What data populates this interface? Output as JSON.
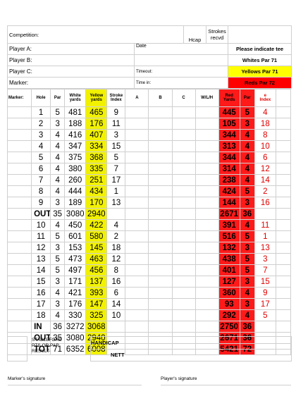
{
  "header": {
    "competition_label": "Competition:",
    "hcap_label": "Hcap",
    "strokes_label_1": "Strokes",
    "strokes_label_2": "recvd",
    "player_a": "Player A:",
    "player_b": "Player B:",
    "player_c": "Player C:",
    "marker": "Marker:",
    "date_label": "Date",
    "timeout_label": "Timeout:",
    "timein_label": "Time in:",
    "tee_title": "Please indicate tee",
    "whites": "Whites Par 71",
    "yellows": "Yellows Par 71",
    "reds": "Reds Par 72"
  },
  "columns": {
    "marker": "Marker:",
    "hole": "Hole",
    "par": "Par",
    "white_yards_1": "White",
    "white_yards_2": "yards",
    "yellow_yards_1": "Yellow",
    "yellow_yards_2": "yards",
    "stroke_index_1": "Stroke",
    "stroke_index_2": "Index",
    "a": "A",
    "b": "B",
    "c": "C",
    "wlh": "W/L/H",
    "red_yards_1": "Red",
    "red_yards_2": "Yards",
    "red_par": "Par",
    "red_index_1": "e",
    "red_index_2": "Index"
  },
  "rows": [
    {
      "hole": "1",
      "par": "5",
      "white": "481",
      "yellow": "465",
      "si": "9",
      "ryards": "445",
      "rpar": "5",
      "ridx": "4"
    },
    {
      "hole": "2",
      "par": "3",
      "white": "188",
      "yellow": "176",
      "si": "11",
      "ryards": "105",
      "rpar": "3",
      "ridx": "18"
    },
    {
      "hole": "3",
      "par": "4",
      "white": "416",
      "yellow": "407",
      "si": "3",
      "ryards": "344",
      "rpar": "4",
      "ridx": "8"
    },
    {
      "hole": "4",
      "par": "4",
      "white": "347",
      "yellow": "334",
      "si": "15",
      "ryards": "313",
      "rpar": "4",
      "ridx": "10"
    },
    {
      "hole": "5",
      "par": "4",
      "white": "375",
      "yellow": "368",
      "si": "5",
      "ryards": "344",
      "rpar": "4",
      "ridx": "6"
    },
    {
      "hole": "6",
      "par": "4",
      "white": "380",
      "yellow": "335",
      "si": "7",
      "ryards": "314",
      "rpar": "4",
      "ridx": "12"
    },
    {
      "hole": "7",
      "par": "4",
      "white": "260",
      "yellow": "251",
      "si": "17",
      "ryards": "238",
      "rpar": "4",
      "ridx": "14"
    },
    {
      "hole": "8",
      "par": "4",
      "white": "444",
      "yellow": "434",
      "si": "1",
      "ryards": "424",
      "rpar": "5",
      "ridx": "2"
    },
    {
      "hole": "9",
      "par": "3",
      "white": "189",
      "yellow": "170",
      "si": "13",
      "ryards": "144",
      "rpar": "3",
      "ridx": "16"
    },
    {
      "hole": "OUT",
      "par": "35",
      "white": "3080",
      "yellow": "2940",
      "si": "",
      "ryards": "2671",
      "rpar": "36",
      "ridx": ""
    },
    {
      "hole": "10",
      "par": "4",
      "white": "450",
      "yellow": "422",
      "si": "4",
      "ryards": "391",
      "rpar": "4",
      "ridx": "11"
    },
    {
      "hole": "11",
      "par": "5",
      "white": "601",
      "yellow": "580",
      "si": "2",
      "ryards": "516",
      "rpar": "5",
      "ridx": "1"
    },
    {
      "hole": "12",
      "par": "3",
      "white": "153",
      "yellow": "145",
      "si": "18",
      "ryards": "132",
      "rpar": "3",
      "ridx": "13"
    },
    {
      "hole": "13",
      "par": "5",
      "white": "473",
      "yellow": "463",
      "si": "12",
      "ryards": "438",
      "rpar": "5",
      "ridx": "3"
    },
    {
      "hole": "14",
      "par": "5",
      "white": "497",
      "yellow": "456",
      "si": "8",
      "ryards": "401",
      "rpar": "5",
      "ridx": "7"
    },
    {
      "hole": "15",
      "par": "3",
      "white": "171",
      "yellow": "137",
      "si": "16",
      "ryards": "127",
      "rpar": "3",
      "ridx": "15"
    },
    {
      "hole": "16",
      "par": "4",
      "white": "421",
      "yellow": "393",
      "si": "6",
      "ryards": "360",
      "rpar": "4",
      "ridx": "9"
    },
    {
      "hole": "17",
      "par": "3",
      "white": "176",
      "yellow": "147",
      "si": "14",
      "ryards": "93",
      "rpar": "3",
      "ridx": "17"
    },
    {
      "hole": "18",
      "par": "4",
      "white": "330",
      "yellow": "325",
      "si": "10",
      "ryards": "292",
      "rpar": "4",
      "ridx": "5"
    },
    {
      "hole": "IN",
      "par": "36",
      "white": "3272",
      "yellow": "3068",
      "si": "",
      "ryards": "2750",
      "rpar": "36",
      "ridx": ""
    },
    {
      "hole": "OUT",
      "par": "35",
      "white": "3080",
      "yellow": "2940",
      "si": "",
      "ryards": "2671",
      "rpar": "36",
      "ridx": ""
    },
    {
      "hole": "TOTAL",
      "par": "71",
      "white": "6352",
      "yellow": "6008",
      "si": "",
      "ryards": "5421",
      "rpar": "72",
      "ridx": ""
    }
  ],
  "footer": {
    "stableford_1": "STABLEFORD",
    "stableford_2": "PTS OR PAR",
    "stableford_3": "RESULT",
    "handicap": "HANDICAP",
    "nett": "NETT",
    "marker_signature": "Marker's signature",
    "player_signature": "Player's signature"
  }
}
